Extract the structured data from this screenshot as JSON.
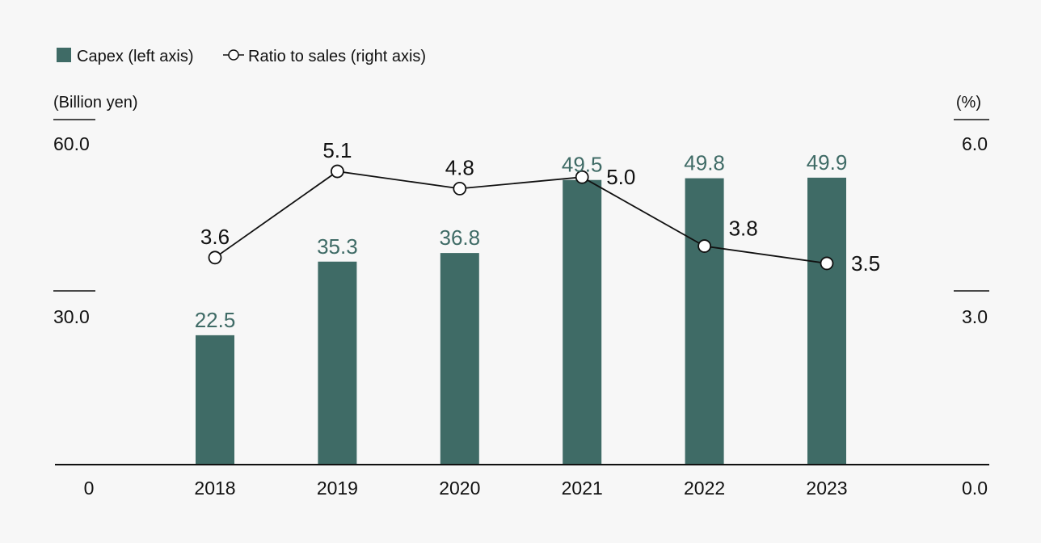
{
  "legend": {
    "bar_label": "Capex (left axis)",
    "line_label": "Ratio to sales (right axis)"
  },
  "colors": {
    "bar": "#3f6b66",
    "line": "#111111",
    "marker_fill": "#ffffff",
    "axis": "#111111"
  },
  "chart_data": {
    "type": "bar",
    "categories": [
      "2018",
      "2019",
      "2020",
      "2021",
      "2022",
      "2023"
    ],
    "series": [
      {
        "name": "Capex (left axis)",
        "type": "bar",
        "axis": "left",
        "values": [
          22.5,
          35.3,
          36.8,
          49.5,
          49.8,
          49.9
        ],
        "labels": [
          "22.5",
          "35.3",
          "36.8",
          "49.5",
          "49.8",
          "49.9"
        ]
      },
      {
        "name": "Ratio to sales (right axis)",
        "type": "line",
        "axis": "right",
        "values": [
          3.6,
          5.1,
          4.8,
          5.0,
          3.8,
          3.5
        ],
        "labels": [
          "3.6",
          "5.1",
          "4.8",
          "5.0",
          "3.8",
          "3.5"
        ]
      }
    ],
    "y_left": {
      "unit": "(Billion yen)",
      "ticks": [
        "0",
        "30.0",
        "60.0"
      ],
      "range": [
        0,
        60
      ]
    },
    "y_right": {
      "unit": "(%)",
      "ticks": [
        "0.0",
        "3.0",
        "6.0"
      ],
      "range": [
        0,
        6
      ]
    },
    "legend_position": "top-left",
    "grid": false
  }
}
